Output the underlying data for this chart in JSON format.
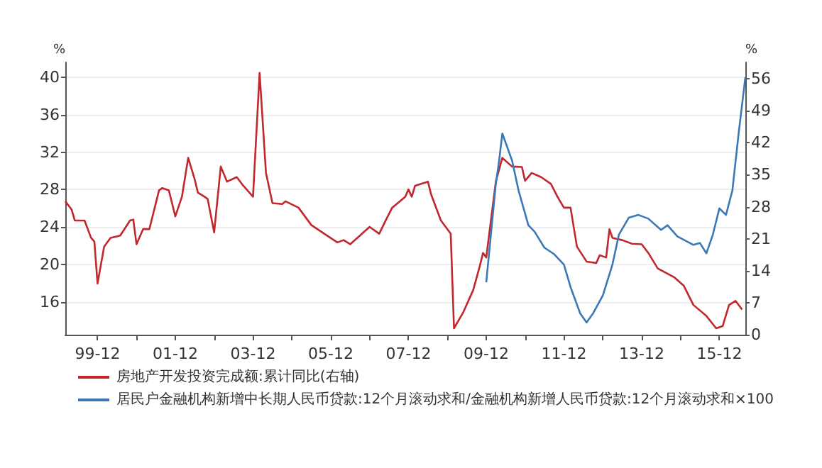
{
  "chart_data": {
    "type": "line",
    "ylabel": "%",
    "y2label": "%",
    "xlim": [
      "1999-02",
      "2016-08"
    ],
    "ylim": [
      12.5,
      41.6
    ],
    "y2lim": [
      0,
      59.6
    ],
    "xticks": [
      {
        "value": "1999-12",
        "label": "99-12"
      },
      {
        "value": "2000-12",
        "label": null
      },
      {
        "value": "2001-12",
        "label": "01-12"
      },
      {
        "value": "2002-12",
        "label": null
      },
      {
        "value": "2003-12",
        "label": "03-12"
      },
      {
        "value": "2004-12",
        "label": null
      },
      {
        "value": "2005-12",
        "label": "05-12"
      },
      {
        "value": "2006-12",
        "label": null
      },
      {
        "value": "2007-12",
        "label": "07-12"
      },
      {
        "value": "2008-12",
        "label": null
      },
      {
        "value": "2009-12",
        "label": "09-12"
      },
      {
        "value": "2010-12",
        "label": null
      },
      {
        "value": "2011-12",
        "label": "11-12"
      },
      {
        "value": "2012-12",
        "label": null
      },
      {
        "value": "2013-12",
        "label": "13-12"
      },
      {
        "value": "2014-12",
        "label": null
      },
      {
        "value": "2015-12",
        "label": "15-12"
      }
    ],
    "yticks": [
      16,
      20,
      24,
      28,
      32,
      36,
      40
    ],
    "y2ticks": [
      0,
      7,
      14,
      21,
      28,
      35,
      42,
      49,
      56
    ],
    "grid": "y",
    "legend": "bottom",
    "marker": "none",
    "line_style": "solid",
    "series": [
      {
        "name": "房地产开发投资完成额:累计同比(右轴)",
        "color": "#c0282d",
        "axis": "y2",
        "x": [
          "1999-02",
          "1999-04",
          "1999-05",
          "1999-08",
          "1999-10",
          "1999-11",
          "1999-12",
          "2000-02",
          "2000-04",
          "2000-07",
          "2000-10",
          "2000-11",
          "2000-12",
          "2001-02",
          "2001-04",
          "2001-07",
          "2001-08",
          "2001-10",
          "2001-12",
          "2002-02",
          "2002-04",
          "2002-06",
          "2002-07",
          "2002-09",
          "2002-10",
          "2002-12",
          "2003-02",
          "2003-04",
          "2003-07",
          "2003-09",
          "2003-12",
          "2004-02",
          "2004-04",
          "2004-06",
          "2004-09",
          "2004-10",
          "2005-02",
          "2005-06",
          "2005-10",
          "2006-02",
          "2006-04",
          "2006-06",
          "2006-09",
          "2006-12",
          "2007-03",
          "2007-05",
          "2007-07",
          "2007-11",
          "2007-12",
          "2008-01",
          "2008-02",
          "2008-06",
          "2008-07",
          "2008-10",
          "2008-12",
          "2009-01",
          "2009-02",
          "2009-05",
          "2009-08",
          "2009-10",
          "2009-11",
          "2009-12",
          "2010-03",
          "2010-05",
          "2010-08",
          "2010-11",
          "2010-12",
          "2011-02",
          "2011-05",
          "2011-08",
          "2011-10",
          "2011-12",
          "2012-02",
          "2012-04",
          "2012-07",
          "2012-10",
          "2012-11",
          "2013-01",
          "2013-02",
          "2013-03",
          "2013-06",
          "2013-09",
          "2013-12",
          "2014-02",
          "2014-05",
          "2014-10",
          "2015-01",
          "2015-04",
          "2015-08",
          "2015-11",
          "2016-01",
          "2016-03",
          "2016-05",
          "2016-07"
        ],
        "values": [
          29.2,
          27.4,
          25.0,
          25.0,
          21.2,
          20.4,
          11.2,
          19.3,
          21.2,
          21.7,
          25.0,
          25.2,
          19.8,
          23.1,
          23.1,
          31.6,
          32.1,
          31.6,
          25.9,
          30.2,
          38.7,
          34.0,
          31.1,
          30.2,
          29.7,
          22.4,
          36.8,
          33.5,
          34.5,
          32.6,
          30.2,
          57.3,
          35.4,
          28.8,
          28.6,
          29.2,
          27.8,
          24.0,
          22.1,
          20.2,
          20.7,
          19.8,
          21.7,
          23.6,
          22.1,
          25.0,
          27.8,
          30.2,
          31.8,
          30.2,
          32.6,
          33.5,
          30.7,
          25.0,
          23.1,
          22.1,
          1.4,
          5.0,
          9.8,
          15.0,
          17.9,
          16.9,
          33.5,
          38.7,
          36.8,
          36.7,
          33.7,
          35.4,
          34.5,
          33.0,
          30.2,
          27.8,
          27.8,
          19.3,
          16.0,
          15.7,
          17.4,
          16.9,
          23.1,
          21.2,
          20.7,
          19.9,
          19.8,
          17.9,
          14.5,
          12.6,
          10.7,
          6.5,
          4.1,
          1.4,
          1.9,
          6.5,
          7.4,
          5.5
        ]
      },
      {
        "name": "居民户金融机构新增中长期人民币贷款:12个月滚动求和/金融机构新增人民币贷款:12个月滚动求和×100",
        "color": "#3a78b8",
        "x": [
          "2009-12",
          "2010-03",
          "2010-04",
          "2010-05",
          "2010-08",
          "2010-10",
          "2011-01",
          "2011-03",
          "2011-06",
          "2011-09",
          "2011-12",
          "2012-02",
          "2012-05",
          "2012-07",
          "2012-09",
          "2012-12",
          "2013-03",
          "2013-05",
          "2013-08",
          "2013-11",
          "2014-02",
          "2014-06",
          "2014-08",
          "2014-11",
          "2015-04",
          "2015-06",
          "2015-08",
          "2015-10",
          "2015-12",
          "2016-02",
          "2016-04",
          "2016-06",
          "2016-08"
        ],
        "values": [
          18.1,
          28.6,
          31.1,
          34.0,
          31.1,
          27.9,
          24.2,
          23.5,
          21.8,
          21.1,
          20.0,
          17.6,
          14.8,
          13.8,
          14.8,
          16.7,
          20.0,
          23.2,
          25.0,
          25.3,
          24.9,
          23.7,
          24.2,
          23.0,
          22.1,
          22.3,
          21.2,
          23.2,
          26.0,
          25.3,
          27.9,
          34.2,
          40.0
        ]
      }
    ]
  }
}
